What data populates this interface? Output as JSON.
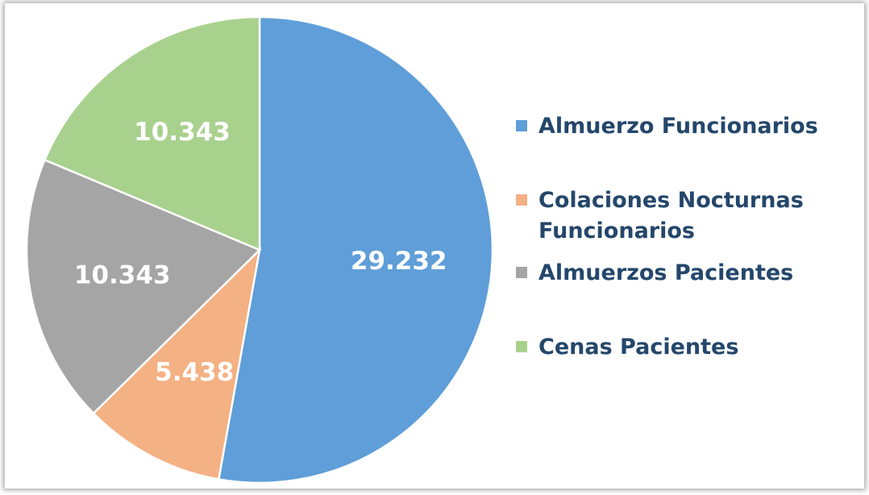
{
  "chart_data": {
    "type": "pie",
    "categories": [
      "Almuerzo Funcionarios",
      "Colaciones Nocturnas Funcionarios",
      "Almuerzos Pacientes",
      "Cenas Pacientes"
    ],
    "values": [
      29232,
      5438,
      10343,
      10343
    ],
    "value_labels": [
      "29.232",
      "5.438",
      "10.343",
      "10.343"
    ],
    "colors": [
      "#5f9ed8",
      "#f4b183",
      "#a5a5a5",
      "#a9d18e"
    ],
    "legend": "right"
  }
}
